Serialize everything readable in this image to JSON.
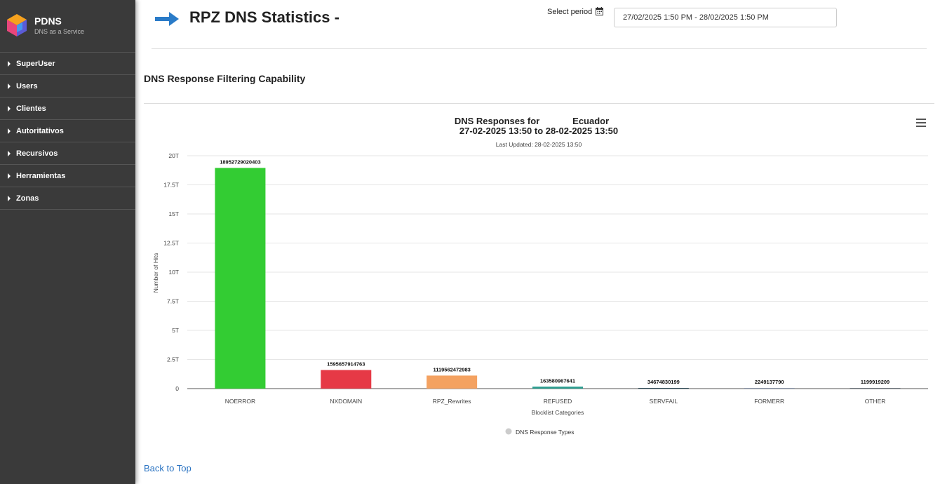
{
  "brand": {
    "title": "PDNS",
    "subtitle": "DNS as a Service"
  },
  "sidebar": {
    "items": [
      {
        "label": "SuperUser"
      },
      {
        "label": "Users"
      },
      {
        "label": "Clientes"
      },
      {
        "label": "Autoritativos"
      },
      {
        "label": "Recursivos"
      },
      {
        "label": "Herramientas"
      },
      {
        "label": "Zonas"
      }
    ]
  },
  "header": {
    "title": "RPZ DNS Statistics -",
    "period_label": "Select period",
    "period_value": "27/02/2025 1:50 PM - 28/02/2025 1:50 PM"
  },
  "section": {
    "title": "DNS Response Filtering Capability"
  },
  "footer": {
    "back_to_top": "Back to Top"
  },
  "colors": {
    "sidebar_bg": "#3a3a3a",
    "arrow": "#2a7bc8",
    "link": "#2a73c2"
  },
  "chart_data": {
    "type": "bar",
    "title_line1": "DNS Responses for             Ecuador",
    "title_line2": "27-02-2025 13:50 to 28-02-2025 13:50",
    "subtitle": "Last Updated: 28-02-2025 13:50",
    "xlabel": "Blocklist Categories",
    "ylabel": "Number of Hits",
    "ylim": [
      0,
      20000000000000
    ],
    "yticks": [
      {
        "value": 0,
        "label": "0"
      },
      {
        "value": 2500000000000,
        "label": "2.5T"
      },
      {
        "value": 5000000000000,
        "label": "5T"
      },
      {
        "value": 7500000000000,
        "label": "7.5T"
      },
      {
        "value": 10000000000000,
        "label": "10T"
      },
      {
        "value": 12500000000000,
        "label": "12.5T"
      },
      {
        "value": 15000000000000,
        "label": "15T"
      },
      {
        "value": 17500000000000,
        "label": "17.5T"
      },
      {
        "value": 20000000000000,
        "label": "20T"
      }
    ],
    "categories": [
      "NOERROR",
      "NXDOMAIN",
      "RPZ_Rewrites",
      "REFUSED",
      "SERVFAIL",
      "FORMERR",
      "OTHER"
    ],
    "values": [
      18952729020403,
      1595657914763,
      1119562472983,
      163580967641,
      34674830199,
      2249137790,
      1199919209
    ],
    "data_labels": [
      "18952729020403",
      "1595657914763",
      "1119562472983",
      "163580967641",
      "34674830199",
      "2249137790",
      "1199919209"
    ],
    "bar_colors": [
      "#33cc33",
      "#e63946",
      "#f4a261",
      "#2a9d8f",
      "#264653",
      "#8d99ae",
      "#6c757d"
    ],
    "legend": {
      "label": "DNS Response Types",
      "position": "bottom-center"
    },
    "grid": true
  }
}
